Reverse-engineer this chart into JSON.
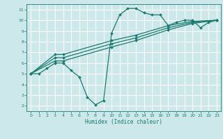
{
  "background_color": "#cce8ea",
  "grid_color": "#ffffff",
  "line_color": "#1a7a6e",
  "xlabel": "Humidex (Indice chaleur)",
  "xlim": [
    -0.5,
    23.5
  ],
  "ylim": [
    1.5,
    11.5
  ],
  "xticks": [
    0,
    1,
    2,
    3,
    4,
    5,
    6,
    7,
    8,
    9,
    10,
    11,
    12,
    13,
    14,
    15,
    16,
    17,
    18,
    19,
    20,
    21,
    22,
    23
  ],
  "yticks": [
    2,
    3,
    4,
    5,
    6,
    7,
    8,
    9,
    10,
    11
  ],
  "curve1_x": [
    0,
    1,
    2,
    3,
    4,
    5,
    6,
    7,
    8,
    9,
    10,
    11,
    12,
    13,
    14,
    15,
    16,
    17,
    18,
    19,
    20,
    21,
    22,
    23
  ],
  "curve1_y": [
    5,
    5,
    5.5,
    6,
    6,
    5.3,
    4.7,
    2.8,
    2.1,
    2.5,
    8.8,
    10.5,
    11.1,
    11.1,
    10.7,
    10.5,
    10.5,
    9.5,
    9.8,
    10.0,
    10.0,
    9.3,
    9.8,
    10.0
  ],
  "curve2_x": [
    0,
    3,
    4,
    10,
    13,
    17,
    20,
    23
  ],
  "curve2_y": [
    5,
    6.2,
    6.2,
    7.5,
    8.1,
    9.1,
    9.7,
    10.0
  ],
  "curve3_x": [
    0,
    3,
    4,
    10,
    13,
    17,
    20,
    23
  ],
  "curve3_y": [
    5,
    6.5,
    6.5,
    7.8,
    8.35,
    9.3,
    9.8,
    10.0
  ],
  "curve4_x": [
    0,
    3,
    4,
    10,
    13,
    17,
    20,
    23
  ],
  "curve4_y": [
    5,
    6.8,
    6.8,
    8.1,
    8.6,
    9.5,
    9.9,
    10.0
  ]
}
